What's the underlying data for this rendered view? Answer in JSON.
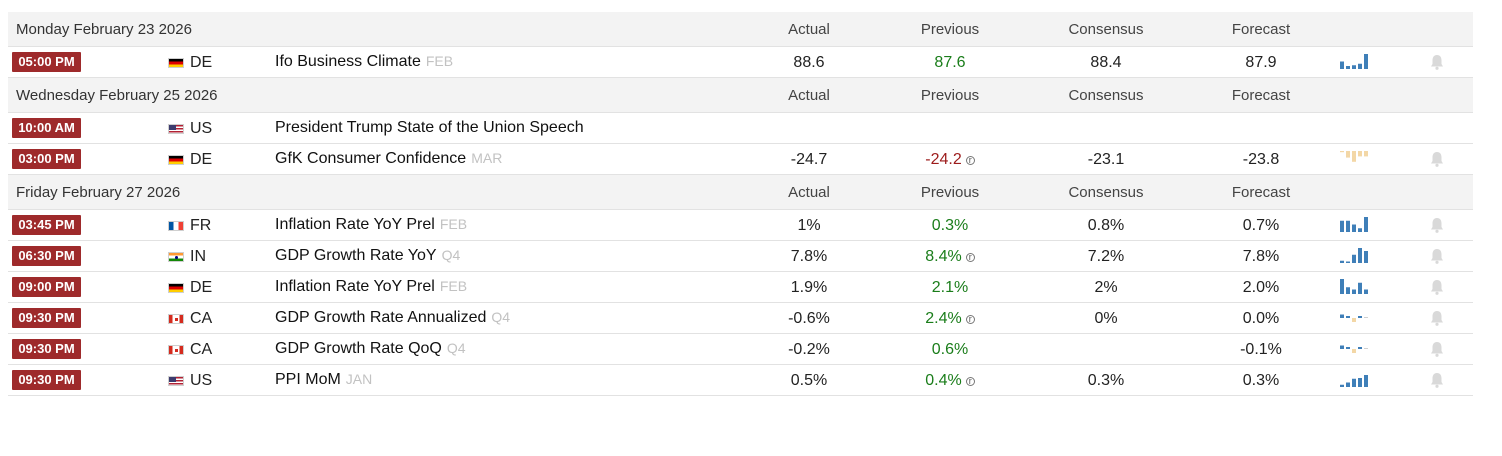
{
  "colors": {
    "time_badge": "#9e2a2b",
    "positive": "#1a7d1a",
    "negative": "#9c1b1b",
    "spark_blue": "#3f7fb8",
    "spark_tan": "#f3d7a6"
  },
  "columns": {
    "actual": "Actual",
    "previous": "Previous",
    "consensus": "Consensus",
    "forecast": "Forecast"
  },
  "days": [
    {
      "date": "Monday February 23 2026",
      "events": [
        {
          "time": "05:00 PM",
          "flag": "de",
          "country": "DE",
          "event": "Ifo Business Climate",
          "ref": "FEB",
          "actual": "88.6",
          "previous": "87.6",
          "previous_color": "green",
          "previous_revised": false,
          "consensus": "88.4",
          "forecast": "87.9",
          "spark": {
            "color": "blue",
            "values": [
              0.5,
              0.2,
              0.25,
              0.35,
              1.0
            ]
          },
          "bell": true
        }
      ]
    },
    {
      "date": "Wednesday February 25 2026",
      "events": [
        {
          "time": "10:00 AM",
          "flag": "us",
          "country": "US",
          "event": "President Trump State of the Union Speech",
          "ref": "",
          "actual": "",
          "previous": "",
          "previous_color": "",
          "previous_revised": false,
          "consensus": "",
          "forecast": "",
          "spark": null,
          "bell": false
        },
        {
          "time": "03:00 PM",
          "flag": "de",
          "country": "DE",
          "event": "GfK Consumer Confidence",
          "ref": "MAR",
          "actual": "-24.7",
          "previous": "-24.2",
          "previous_color": "red",
          "previous_revised": true,
          "consensus": "-23.1",
          "forecast": "-23.8",
          "spark": {
            "color": "tan",
            "values": [
              -0.1,
              -0.55,
              -0.9,
              -0.45,
              -0.45
            ]
          },
          "bell": true
        }
      ]
    },
    {
      "date": "Friday February 27 2026",
      "events": [
        {
          "time": "03:45 PM",
          "flag": "fr",
          "country": "FR",
          "event": "Inflation Rate YoY Prel",
          "ref": "FEB",
          "actual": "1%",
          "previous": "0.3%",
          "previous_color": "green",
          "previous_revised": false,
          "consensus": "0.8%",
          "forecast": "0.7%",
          "spark": {
            "color": "blue",
            "values": [
              0.75,
              0.75,
              0.5,
              0.25,
              1.0
            ]
          },
          "bell": true
        },
        {
          "time": "06:30 PM",
          "flag": "in",
          "country": "IN",
          "event": "GDP Growth Rate YoY",
          "ref": "Q4",
          "actual": "7.8%",
          "previous": "8.4%",
          "previous_color": "green",
          "previous_revised": true,
          "consensus": "7.2%",
          "forecast": "7.8%",
          "spark": {
            "color": "blue",
            "values": [
              0.15,
              0.1,
              0.55,
              1.0,
              0.8
            ]
          },
          "bell": true
        },
        {
          "time": "09:00 PM",
          "flag": "de",
          "country": "DE",
          "event": "Inflation Rate YoY Prel",
          "ref": "FEB",
          "actual": "1.9%",
          "previous": "2.1%",
          "previous_color": "green",
          "previous_revised": false,
          "consensus": "2%",
          "forecast": "2.0%",
          "spark": {
            "color": "blue",
            "values": [
              1.0,
              0.45,
              0.3,
              0.75,
              0.3
            ]
          },
          "bell": true
        },
        {
          "time": "09:30 PM",
          "flag": "ca",
          "country": "CA",
          "event": "GDP Growth Rate Annualized",
          "ref": "Q4",
          "actual": "-0.6%",
          "previous": "2.4%",
          "previous_color": "green",
          "previous_revised": true,
          "consensus": "0%",
          "forecast": "0.0%",
          "spark": {
            "color": "mixed",
            "values": [
              0.35,
              0.2,
              -0.4,
              0.2,
              0.05
            ]
          },
          "bell": true
        },
        {
          "time": "09:30 PM",
          "flag": "ca",
          "country": "CA",
          "event": "GDP Growth Rate QoQ",
          "ref": "Q4",
          "actual": "-0.2%",
          "previous": "0.6%",
          "previous_color": "green",
          "previous_revised": false,
          "consensus": "",
          "forecast": "-0.1%",
          "spark": {
            "color": "mixed",
            "values": [
              0.35,
              0.2,
              -0.4,
              0.2,
              0.05
            ]
          },
          "bell": true
        },
        {
          "time": "09:30 PM",
          "flag": "us",
          "country": "US",
          "event": "PPI MoM",
          "ref": "JAN",
          "actual": "0.5%",
          "previous": "0.4%",
          "previous_color": "green",
          "previous_revised": true,
          "consensus": "0.3%",
          "forecast": "0.3%",
          "spark": {
            "color": "blue",
            "values": [
              0.15,
              0.3,
              0.55,
              0.6,
              0.8
            ]
          },
          "bell": true
        }
      ]
    }
  ]
}
